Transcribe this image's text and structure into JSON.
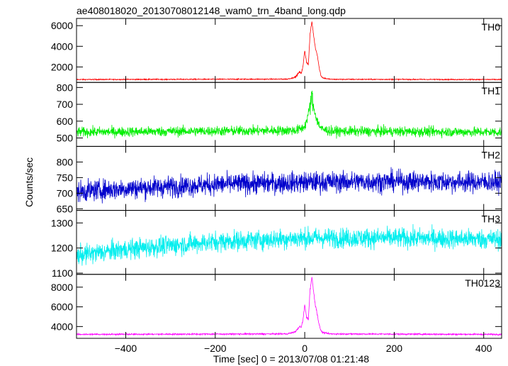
{
  "chart_data": {
    "type": "line",
    "title": "ae408018020_20130708012148_wam0_trn_4band_long.qdp",
    "xlabel": "Time [sec] 0 = 2013/07/08 01:21:48",
    "ylabel": "Counts/sec",
    "xlim": [
      -510,
      440
    ],
    "x_ticks": [
      -400,
      -200,
      0,
      200,
      400
    ],
    "grid": false,
    "panels": [
      {
        "name": "TH0",
        "color": "#ff0000",
        "ylim": [
          500,
          6700
        ],
        "y_ticks": [
          2000,
          4000,
          6000
        ],
        "baseline": 780,
        "noise": 45,
        "series": {
          "x": [
            -510,
            -40,
            -30,
            -20,
            -12,
            -8,
            -4,
            0,
            4,
            8,
            12,
            16,
            20,
            24,
            28,
            32,
            36,
            40,
            50,
            60,
            440
          ],
          "values": [
            780,
            820,
            900,
            1050,
            1500,
            1400,
            2000,
            3600,
            2500,
            2200,
            5200,
            6400,
            5000,
            3800,
            3200,
            2000,
            1200,
            950,
            850,
            800,
            780
          ]
        }
      },
      {
        "name": "TH1",
        "color": "#00ee00",
        "ylim": [
          450,
          830
        ],
        "y_ticks": [
          500,
          600,
          700,
          800
        ],
        "baseline": 535,
        "noise": 28,
        "series": {
          "x": [
            -510,
            -20,
            -8,
            0,
            4,
            8,
            12,
            16,
            20,
            24,
            28,
            32,
            36,
            40,
            50,
            60,
            440
          ],
          "values": [
            535,
            545,
            555,
            570,
            600,
            640,
            700,
            740,
            680,
            640,
            600,
            580,
            560,
            550,
            545,
            540,
            535
          ]
        }
      },
      {
        "name": "TH2",
        "color": "#0000cc",
        "ylim": [
          645,
          850
        ],
        "y_ticks": [
          650,
          700,
          750,
          800
        ],
        "baseline": 728,
        "noise": 32,
        "series": {
          "x": [
            -510,
            -400,
            -200,
            0,
            200,
            440
          ],
          "values": [
            705,
            715,
            728,
            735,
            738,
            735
          ]
        }
      },
      {
        "name": "TH3",
        "color": "#00eeee",
        "ylim": [
          1095,
          1350
        ],
        "y_ticks": [
          1100,
          1200,
          1300
        ],
        "baseline": 1225,
        "noise": 38,
        "series": {
          "x": [
            -510,
            -400,
            -200,
            0,
            200,
            440
          ],
          "values": [
            1170,
            1195,
            1225,
            1240,
            1240,
            1235
          ]
        }
      },
      {
        "name": "TH0123",
        "color": "#ff00ff",
        "ylim": [
          2800,
          9300
        ],
        "y_ticks": [
          4000,
          6000,
          8000
        ],
        "baseline": 3200,
        "noise": 70,
        "series": {
          "x": [
            -510,
            -40,
            -30,
            -20,
            -12,
            -8,
            -4,
            0,
            4,
            8,
            12,
            16,
            20,
            24,
            28,
            32,
            36,
            40,
            50,
            60,
            440
          ],
          "values": [
            3200,
            3250,
            3350,
            3500,
            4000,
            3900,
            4600,
            6200,
            5000,
            4700,
            7800,
            9000,
            7500,
            6100,
            5300,
            4200,
            3600,
            3400,
            3300,
            3250,
            3200
          ]
        }
      }
    ]
  }
}
